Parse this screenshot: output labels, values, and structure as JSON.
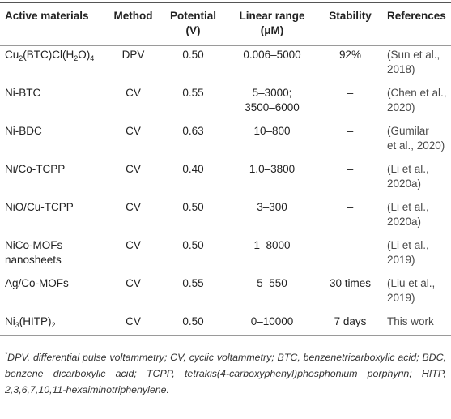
{
  "header": {
    "col0": "Active materials",
    "col1": "Method",
    "col2_line1": "Potential",
    "col2_line2": "(V)",
    "col3_line1": "Linear range",
    "col3_line2": "(μM)",
    "col4": "Stability",
    "col5": "References"
  },
  "rows": [
    {
      "mat_a": "Cu",
      "mat_s1": "2",
      "mat_b": "(BTC)Cl(H",
      "mat_s2": "2",
      "mat_c": "O)",
      "mat_s3": "4",
      "method": "DPV",
      "potential": "0.50",
      "range1": "0.006–5000",
      "range2": "",
      "stability": "92%",
      "ref1": "(Sun et al.,",
      "ref2": "2018)"
    },
    {
      "mat": "Ni-BTC",
      "method": "CV",
      "potential": "0.55",
      "range1": "5–3000;",
      "range2": "3500–6000",
      "stability": "–",
      "ref1": "(Chen et al.,",
      "ref2": "2020)"
    },
    {
      "mat": "Ni-BDC",
      "method": "CV",
      "potential": "0.63",
      "range1": "10–800",
      "range2": "",
      "stability": "–",
      "ref1": "(Gumilar",
      "ref2": "et al., 2020)"
    },
    {
      "mat": "Ni/Co-TCPP",
      "method": "CV",
      "potential": "0.40",
      "range1": "1.0–3800",
      "range2": "",
      "stability": "–",
      "ref1": "(Li et al.,",
      "ref2": "2020a)"
    },
    {
      "mat": "NiO/Cu-TCPP",
      "method": "CV",
      "potential": "0.50",
      "range1": "3–300",
      "range2": "",
      "stability": "–",
      "ref1": "(Li et al.,",
      "ref2": "2020a)"
    },
    {
      "mat1": "NiCo-MOFs",
      "mat2": "nanosheets",
      "method": "CV",
      "potential": "0.50",
      "range1": "1–8000",
      "range2": "",
      "stability": "–",
      "ref1": "(Li et al.,",
      "ref2": "2019)"
    },
    {
      "mat": "Ag/Co-MOFs",
      "method": "CV",
      "potential": "0.55",
      "range1": "5–550",
      "range2": "",
      "stability": "30 times",
      "ref1": "(Liu et al.,",
      "ref2": "2019)"
    },
    {
      "mat_a": "Ni",
      "mat_s1": "3",
      "mat_b": "(HITP)",
      "mat_s2": "2",
      "method": "CV",
      "potential": "0.50",
      "range1": "0–10000",
      "range2": "",
      "stability": "7 days",
      "ref1": "This work",
      "ref2": ""
    }
  ],
  "footnote": {
    "marker": "*",
    "text": "DPV, differential pulse voltammetry; CV, cyclic voltammetry; BTC, benzenetricarboxylic acid; BDC, benzene dicarboxylic acid; TCPP, tetrakis(4-carboxyphenyl)phosphonium porphyrin; HITP, 2,3,6,7,10,11-hexaiminotriphenylene."
  }
}
